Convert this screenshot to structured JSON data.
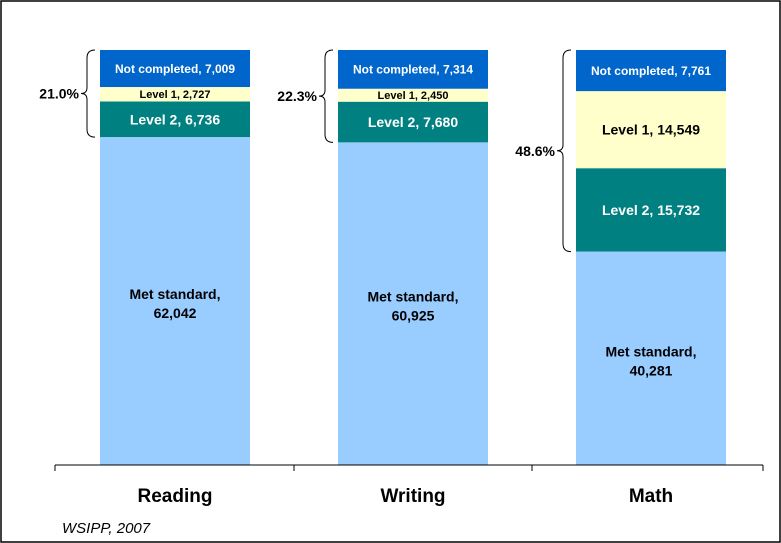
{
  "chart_data": {
    "type": "bar",
    "stacked": true,
    "categories": [
      "Reading",
      "Writing",
      "Math"
    ],
    "series": [
      {
        "key": "met",
        "label": "Met standard,",
        "values": [
          62042,
          60925,
          40281
        ],
        "color": "#99CCFF",
        "text_color": "#000000"
      },
      {
        "key": "l2",
        "label": "Level 2,",
        "values": [
          6736,
          7680,
          15732
        ],
        "color": "#008080",
        "text_color": "#FFFFFF"
      },
      {
        "key": "l1",
        "label": "Level 1,",
        "values": [
          2727,
          2450,
          14549
        ],
        "color": "#FFFFCC",
        "text_color": "#000000"
      },
      {
        "key": "nc",
        "label": "Not completed,",
        "values": [
          7009,
          7314,
          7761
        ],
        "color": "#0066CC",
        "text_color": "#FFFFFF"
      }
    ],
    "bracket_labels": [
      "21.0%",
      "22.3%",
      "48.6%"
    ],
    "grid": false,
    "legend": "none"
  },
  "source_note": "WSIPP, 2007"
}
